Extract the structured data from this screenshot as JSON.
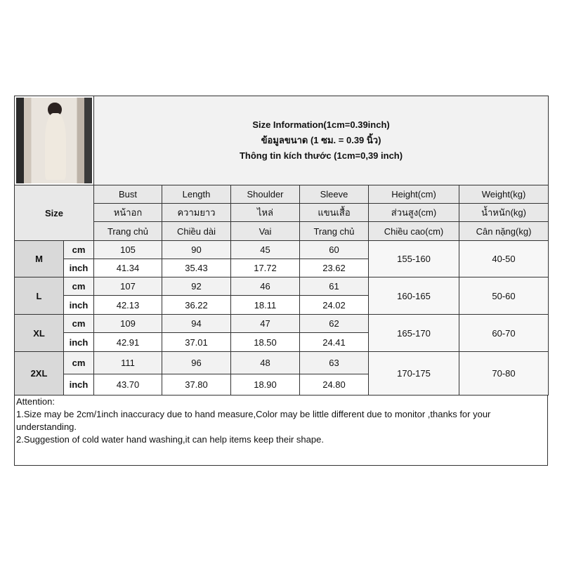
{
  "title_lines": [
    "Size Information(1cm=0.39inch)",
    "ข้อมูลขนาด (1 ซม. = 0.39 นิ้ว)",
    "Thông tin kích thước (1cm=0,39 inch)"
  ],
  "size_label": "Size",
  "columns": [
    {
      "en": "Bust",
      "th": "หน้าอก",
      "vi": "Trang chủ"
    },
    {
      "en": "Length",
      "th": "ความยาว",
      "vi": "Chiều dài"
    },
    {
      "en": "Shoulder",
      "th": "ไหล่",
      "vi": "Vai"
    },
    {
      "en": "Sleeve",
      "th": "แขนเสื้อ",
      "vi": "Trang chủ"
    },
    {
      "en": "Height(cm)",
      "th": "ส่วนสูง(cm)",
      "vi": "Chiều cao(cm)"
    },
    {
      "en": "Weight(kg)",
      "th": "น้ำหนัก(kg)",
      "vi": "Cân nặng(kg)"
    }
  ],
  "units": {
    "cm": "cm",
    "inch": "inch"
  },
  "rows": [
    {
      "size": "M",
      "cm": [
        "105",
        "90",
        "45",
        "60"
      ],
      "inch": [
        "41.34",
        "35.43",
        "17.72",
        "23.62"
      ],
      "height": "155-160",
      "weight": "40-50"
    },
    {
      "size": "L",
      "cm": [
        "107",
        "92",
        "46",
        "61"
      ],
      "inch": [
        "42.13",
        "36.22",
        "18.11",
        "24.02"
      ],
      "height": "160-165",
      "weight": "50-60"
    },
    {
      "size": "XL",
      "cm": [
        "109",
        "94",
        "47",
        "62"
      ],
      "inch": [
        "42.91",
        "37.01",
        "18.50",
        "24.41"
      ],
      "height": "165-170",
      "weight": "60-70"
    },
    {
      "size": "2XL",
      "cm": [
        "111",
        "96",
        "48",
        "63"
      ],
      "inch": [
        "43.70",
        "37.80",
        "18.90",
        "24.80"
      ],
      "height": "170-175",
      "weight": "70-80"
    }
  ],
  "notes": {
    "heading": "Attention:",
    "items": [
      "1.Size may be 2cm/1inch inaccuracy due to hand measure,Color may be little different due to monitor ,thanks for your understanding.",
      "2.Suggestion of cold water hand washing,it can help items keep their shape."
    ]
  }
}
